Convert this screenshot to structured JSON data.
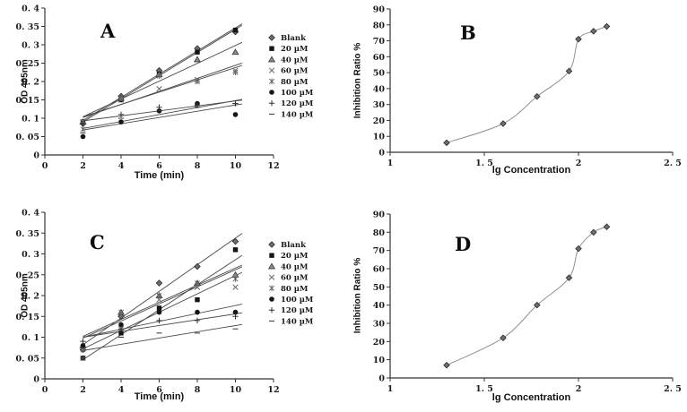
{
  "page": {
    "background": "#ffffff"
  },
  "colors": {
    "text": "#1a1a1a",
    "axis": "#333333",
    "trendline": "#4a4a4a",
    "curve": "#909090",
    "marker_dark": "#151515",
    "marker_gray": "#6e6e6e",
    "marker_stroke": "#2a2a2a"
  },
  "chart_data": [
    {
      "id": "A",
      "type": "scatter",
      "title": "A",
      "xlabel": "Time (min)",
      "ylabel": "OD 405nm",
      "xlim": [
        0,
        12
      ],
      "ylim": [
        0,
        0.4
      ],
      "xticks": {
        "values": [
          0,
          2,
          4,
          6,
          8,
          10,
          12
        ],
        "labels": [
          "0",
          "2",
          "4",
          "6",
          "8",
          "10",
          "12"
        ]
      },
      "yticks": {
        "values": [
          0,
          0.05,
          0.1,
          0.15,
          0.2,
          0.25,
          0.3,
          0.35,
          0.4
        ],
        "labels": [
          "0",
          "0. 05",
          "0. 1",
          "0. 15",
          "0. 2",
          "0. 25",
          "0. 3",
          "0. 35",
          "0. 4"
        ]
      },
      "grid": false,
      "trendlines": true,
      "legend_position": "right",
      "x": [
        2,
        4,
        6,
        8,
        10
      ],
      "series": [
        {
          "name": "Blank",
          "marker": "diamond",
          "values": [
            0.085,
            0.16,
            0.23,
            0.29,
            0.335
          ]
        },
        {
          "name": "20 µM",
          "marker": "square",
          "values": [
            0.09,
            0.15,
            0.22,
            0.28,
            0.34
          ]
        },
        {
          "name": "40 µM",
          "marker": "triangle",
          "values": [
            0.09,
            0.155,
            0.22,
            0.26,
            0.28
          ]
        },
        {
          "name": "60 µM",
          "marker": "x",
          "values": [
            0.09,
            0.15,
            0.18,
            0.205,
            0.23
          ]
        },
        {
          "name": "80 µM",
          "marker": "star",
          "values": [
            0.07,
            0.155,
            0.215,
            0.2,
            0.225
          ]
        },
        {
          "name": "100 µM",
          "marker": "circle",
          "values": [
            0.05,
            0.09,
            0.12,
            0.14,
            0.11
          ]
        },
        {
          "name": "120 µM",
          "marker": "plus",
          "values": [
            0.085,
            0.11,
            0.13,
            0.135,
            0.14
          ]
        },
        {
          "name": "140 µM",
          "marker": "dash",
          "values": [
            0.06,
            0.1,
            0.12,
            0.13,
            0.14
          ]
        }
      ]
    },
    {
      "id": "B",
      "type": "line",
      "title": "B",
      "xlabel": "lg Concentration",
      "ylabel": "Inhibition Ratio %",
      "xlim": [
        1,
        2.5
      ],
      "ylim": [
        0,
        90
      ],
      "xticks": {
        "values": [
          1,
          1.5,
          2,
          2.5
        ],
        "labels": [
          "1",
          "1. 5",
          "2",
          "2. 5"
        ]
      },
      "yticks": {
        "values": [
          0,
          10,
          20,
          30,
          40,
          50,
          60,
          70,
          80,
          90
        ],
        "labels": [
          "0",
          "10",
          "20",
          "30",
          "40",
          "50",
          "60",
          "70",
          "80",
          "90"
        ]
      },
      "grid": false,
      "series": [
        {
          "name": "Inhibition Ratio",
          "marker": "diamond",
          "x": [
            1.3,
            1.6,
            1.78,
            1.95,
            2.0,
            2.08,
            2.15
          ],
          "y": [
            6,
            18,
            35,
            51,
            71,
            76,
            79
          ]
        }
      ]
    },
    {
      "id": "C",
      "type": "scatter",
      "title": "C",
      "xlabel": "Time (min)",
      "ylabel": "OD 405nm",
      "xlim": [
        0,
        12
      ],
      "ylim": [
        0,
        0.4
      ],
      "xticks": {
        "values": [
          0,
          2,
          4,
          6,
          8,
          10,
          12
        ],
        "labels": [
          "0",
          "2",
          "4",
          "6",
          "8",
          "10",
          "12"
        ]
      },
      "yticks": {
        "values": [
          0,
          0.05,
          0.1,
          0.15,
          0.2,
          0.25,
          0.3,
          0.35,
          0.4
        ],
        "labels": [
          "0",
          "0. 05",
          "0. 1",
          "0. 15",
          "0. 2",
          "0. 25",
          "0. 3",
          "0. 35",
          "0. 4"
        ]
      },
      "grid": false,
      "trendlines": true,
      "legend_position": "right",
      "x": [
        2,
        4,
        6,
        8,
        10
      ],
      "series": [
        {
          "name": "Blank",
          "marker": "diamond",
          "values": [
            0.07,
            0.15,
            0.23,
            0.27,
            0.33
          ]
        },
        {
          "name": "20 µM",
          "marker": "square",
          "values": [
            0.05,
            0.11,
            0.17,
            0.19,
            0.31
          ]
        },
        {
          "name": "40 µM",
          "marker": "triangle",
          "values": [
            0.08,
            0.16,
            0.2,
            0.23,
            0.25
          ]
        },
        {
          "name": "60 µM",
          "marker": "x",
          "values": [
            0.05,
            0.12,
            0.19,
            0.22,
            0.22
          ]
        },
        {
          "name": "80 µM",
          "marker": "star",
          "values": [
            0.07,
            0.16,
            0.2,
            0.23,
            0.24
          ]
        },
        {
          "name": "100 µM",
          "marker": "circle",
          "values": [
            0.08,
            0.13,
            0.16,
            0.16,
            0.16
          ]
        },
        {
          "name": "120 µM",
          "marker": "plus",
          "values": [
            0.09,
            0.12,
            0.14,
            0.14,
            0.15
          ]
        },
        {
          "name": "140 µM",
          "marker": "dash",
          "values": [
            0.05,
            0.1,
            0.11,
            0.11,
            0.12
          ]
        }
      ]
    },
    {
      "id": "D",
      "type": "line",
      "title": "D",
      "xlabel": "lg Concentration",
      "ylabel": "Inhibition Ratio %",
      "xlim": [
        1,
        2.5
      ],
      "ylim": [
        0,
        90
      ],
      "xticks": {
        "values": [
          1,
          1.5,
          2,
          2.5
        ],
        "labels": [
          "1",
          "1. 5",
          "2",
          "2. 5"
        ]
      },
      "yticks": {
        "values": [
          0,
          10,
          20,
          30,
          40,
          50,
          60,
          70,
          80,
          90
        ],
        "labels": [
          "0",
          "10",
          "20",
          "30",
          "40",
          "50",
          "60",
          "70",
          "80",
          "90"
        ]
      },
      "grid": false,
      "series": [
        {
          "name": "Inhibition Ratio",
          "marker": "diamond",
          "x": [
            1.3,
            1.6,
            1.78,
            1.95,
            2.0,
            2.08,
            2.15
          ],
          "y": [
            7,
            22,
            40,
            55,
            71,
            80,
            83
          ]
        }
      ]
    }
  ]
}
